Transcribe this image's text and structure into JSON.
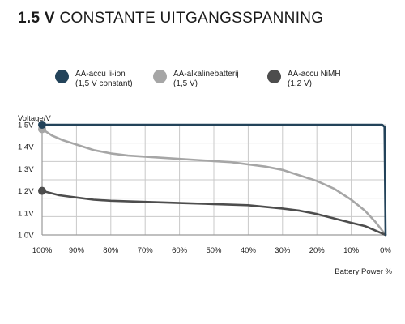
{
  "title_strong": "1.5 V",
  "title_rest": "CONSTANTE UITGANGSSPANNING",
  "chart_data": {
    "type": "line",
    "ylabel": "Voltage/V",
    "xlabel": "Battery Power %",
    "xlim": [
      100,
      0
    ],
    "ylim": [
      1.0,
      1.5
    ],
    "grid": true,
    "legend_position": "top",
    "x_ticks": [
      "100%",
      "90%",
      "80%",
      "70%",
      "60%",
      "50%",
      "40%",
      "30%",
      "20%",
      "10%",
      "0%"
    ],
    "y_ticks": [
      "1.0V",
      "1.1V",
      "1.2V",
      "1.3V",
      "1.4V",
      "1.5V"
    ],
    "series": [
      {
        "name": "AA-accu li-ion",
        "sub": "(1,5 V constant)",
        "color": "#23435a",
        "x": [
          100,
          80,
          60,
          40,
          20,
          1,
          0.3,
          0
        ],
        "y": [
          1.5,
          1.5,
          1.5,
          1.5,
          1.5,
          1.5,
          1.49,
          1.0
        ]
      },
      {
        "name": "AA-alkalinebatterij",
        "sub": "(1,5 V)",
        "color": "#a6a6a6",
        "x": [
          100,
          97,
          94,
          90,
          85,
          80,
          75,
          70,
          65,
          60,
          55,
          50,
          45,
          40,
          35,
          30,
          25,
          20,
          15,
          10,
          6,
          3,
          0
        ],
        "y": [
          1.48,
          1.45,
          1.43,
          1.41,
          1.385,
          1.37,
          1.36,
          1.355,
          1.35,
          1.345,
          1.34,
          1.335,
          1.33,
          1.32,
          1.31,
          1.295,
          1.27,
          1.245,
          1.21,
          1.16,
          1.11,
          1.06,
          1.0
        ]
      },
      {
        "name": "AA-accu NiMH",
        "sub": "(1,2 V)",
        "color": "#4d4d4d",
        "x": [
          100,
          95,
          90,
          85,
          80,
          70,
          60,
          50,
          40,
          30,
          25,
          20,
          15,
          10,
          6,
          3,
          0
        ],
        "y": [
          1.2,
          1.18,
          1.17,
          1.16,
          1.155,
          1.15,
          1.145,
          1.14,
          1.135,
          1.12,
          1.11,
          1.095,
          1.075,
          1.055,
          1.04,
          1.02,
          1.0
        ]
      }
    ]
  }
}
